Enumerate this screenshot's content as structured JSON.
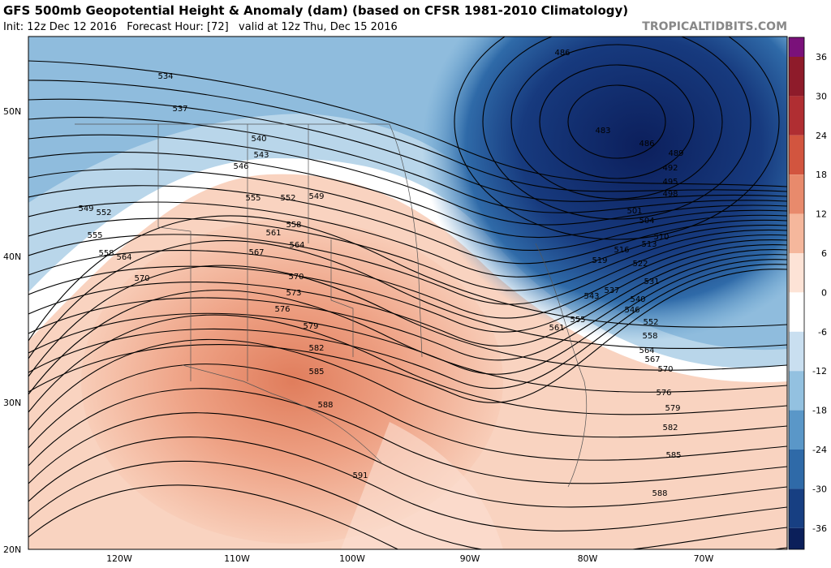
{
  "header": {
    "title": "GFS 500mb Geopotential Height & Anomaly (dam) (based on CFSR 1981-2010 Climatology)",
    "subtitle": "Init: 12z Dec 12 2016   Forecast Hour: [72]   valid at 12z Thu, Dec 15 2016",
    "watermark": "TROPICALTIDBITS.COM"
  },
  "latitude_labels": [
    "50N",
    "40N",
    "30N",
    "20N"
  ],
  "longitude_labels": [
    "120W",
    "110W",
    "100W",
    "90W",
    "80W",
    "70W"
  ],
  "colorbar_labels": [
    "36",
    "30",
    "24",
    "18",
    "12",
    "6",
    "0",
    "-6",
    "-12",
    "-18",
    "-24",
    "-30",
    "-36"
  ],
  "contour_labels": [
    "534",
    "537",
    "540",
    "543",
    "546",
    "549",
    "552",
    "555",
    "558",
    "564",
    "570",
    "555",
    "552",
    "549",
    "558",
    "561",
    "564",
    "567",
    "570",
    "573",
    "576",
    "579",
    "582",
    "585",
    "588",
    "591",
    "486",
    "483",
    "486",
    "489",
    "492",
    "495",
    "498",
    "501",
    "504",
    "510",
    "513",
    "516",
    "519",
    "522",
    "531",
    "537",
    "540",
    "543",
    "546",
    "552",
    "555",
    "558",
    "561",
    "564",
    "567",
    "570",
    "576",
    "579",
    "582",
    "585",
    "588"
  ]
}
